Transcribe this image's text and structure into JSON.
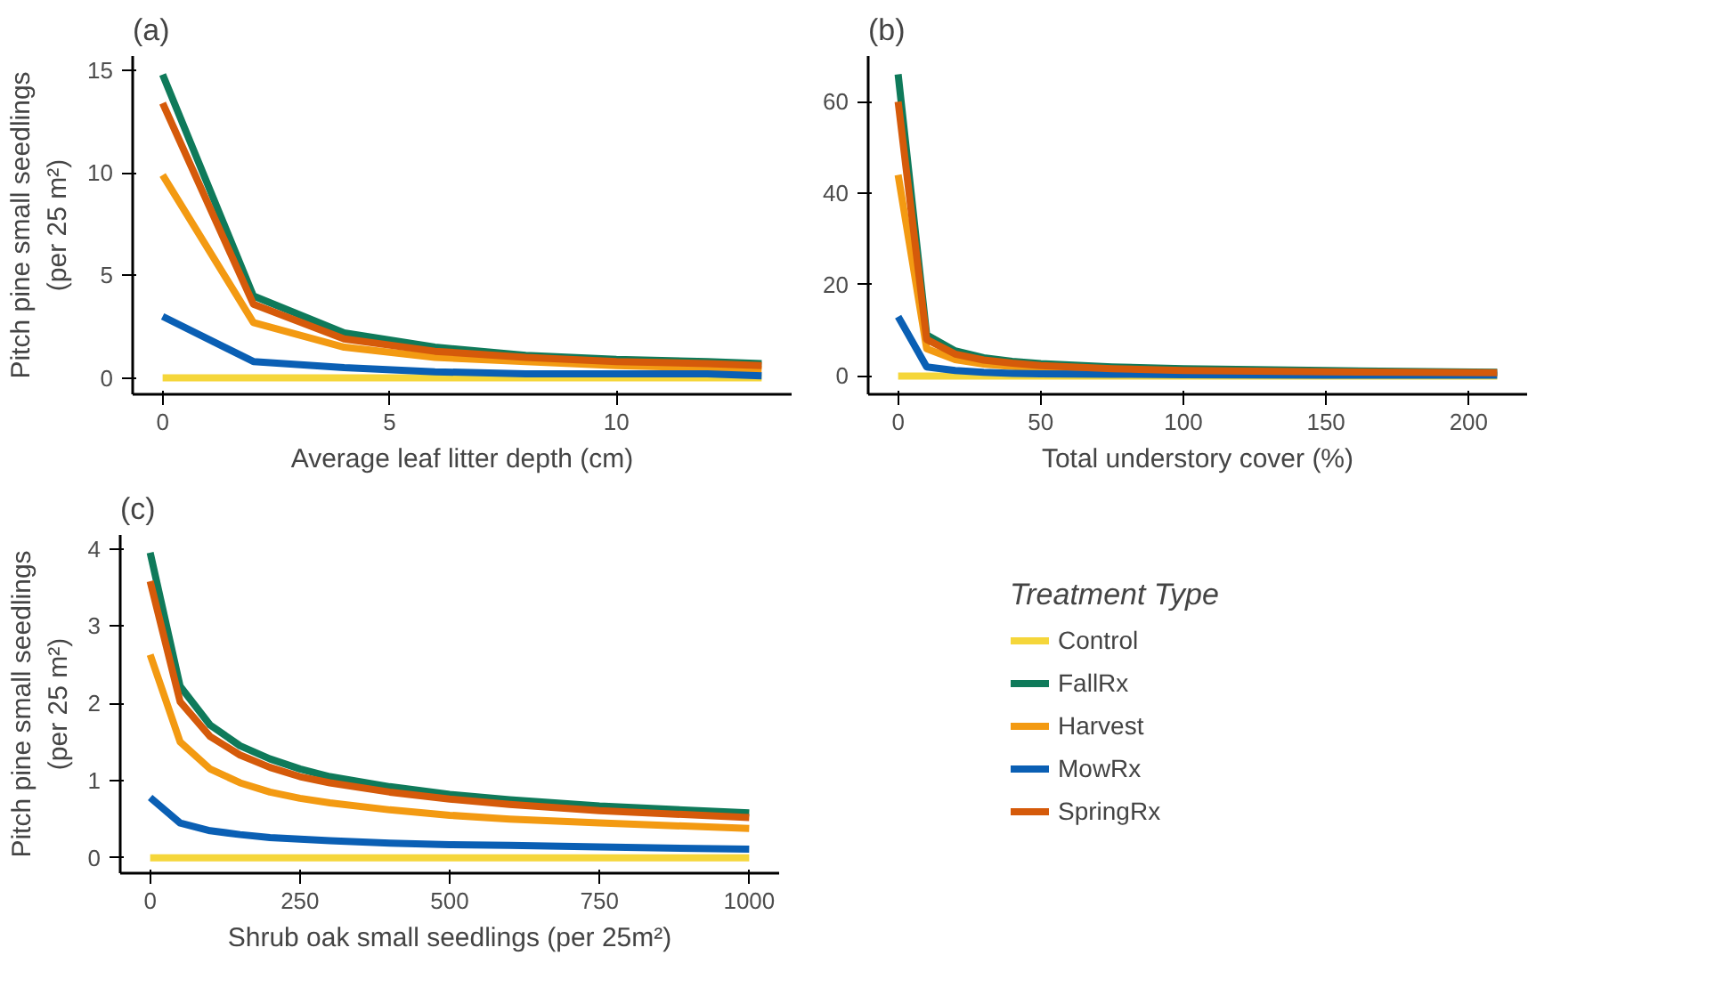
{
  "chart_data": [
    {
      "type": "line",
      "title": "(a)",
      "xlabel": "Average leaf litter depth (cm)",
      "ylabel": "Pitch pine small seedlings\n(per 25 m²)",
      "x": [
        0,
        2,
        4,
        6,
        8,
        10,
        12,
        13.2
      ],
      "xlim": [
        -0.66,
        13.86
      ],
      "ylim": [
        -0.8,
        15.7
      ],
      "xticks": [
        0,
        5,
        10
      ],
      "yticks": [
        0,
        5,
        10,
        15
      ],
      "series": [
        {
          "color": "#f5d63a",
          "values": [
            0,
            0,
            0,
            0,
            0,
            0,
            0,
            0
          ]
        },
        {
          "color": "#0f7a5a",
          "values": [
            14.8,
            4.0,
            2.2,
            1.5,
            1.1,
            0.9,
            0.8,
            0.7
          ]
        },
        {
          "color": "#f39a12",
          "values": [
            9.9,
            2.7,
            1.5,
            1.0,
            0.8,
            0.6,
            0.5,
            0.4
          ]
        },
        {
          "color": "#0a5fb4",
          "values": [
            3.0,
            0.8,
            0.5,
            0.3,
            0.2,
            0.2,
            0.2,
            0.1
          ]
        },
        {
          "color": "#d55a0a",
          "values": [
            13.4,
            3.6,
            1.9,
            1.3,
            1.0,
            0.8,
            0.7,
            0.6
          ]
        }
      ]
    },
    {
      "type": "line",
      "title": "(b)",
      "xlabel": "Total understory cover (%)",
      "x": [
        0,
        10,
        20,
        30,
        40,
        50,
        75,
        100,
        150,
        210
      ],
      "xlim": [
        -10.5,
        220.5
      ],
      "ylim": [
        -4,
        70
      ],
      "xticks": [
        0,
        50,
        100,
        150,
        200
      ],
      "yticks": [
        0,
        20,
        40,
        60
      ],
      "series": [
        {
          "color": "#f5d63a",
          "values": [
            0,
            0,
            0,
            0,
            0,
            0,
            0,
            0,
            0,
            0
          ]
        },
        {
          "color": "#0f7a5a",
          "values": [
            66,
            9,
            5.5,
            4,
            3.2,
            2.7,
            2,
            1.6,
            1.2,
            0.8
          ]
        },
        {
          "color": "#f39a12",
          "values": [
            44,
            6,
            3.6,
            2.6,
            2.1,
            1.7,
            1.2,
            null,
            null,
            null
          ]
        },
        {
          "color": "#0a5fb4",
          "values": [
            13,
            2,
            1.2,
            0.8,
            0.6,
            0.5,
            0.4,
            0.3,
            0.2,
            0.2
          ]
        },
        {
          "color": "#d55a0a",
          "values": [
            60,
            8,
            4.8,
            3.5,
            2.8,
            2.3,
            1.6,
            1.2,
            0.9,
            0.7
          ]
        }
      ]
    },
    {
      "type": "line",
      "title": "(c)",
      "xlabel": "Shrub oak small seedlings (per 25m²)",
      "ylabel": "Pitch pine small seedlings\n(per 25 m²)",
      "x": [
        0,
        50,
        100,
        150,
        200,
        250,
        300,
        400,
        500,
        600,
        750,
        1000
      ],
      "xlim": [
        -50,
        1050
      ],
      "ylim": [
        -0.2,
        4.18
      ],
      "xticks": [
        0,
        250,
        500,
        750,
        1000
      ],
      "yticks": [
        0,
        1,
        2,
        3,
        4
      ],
      "legend": "right",
      "legend_title": "Treatment Type",
      "series": [
        {
          "name": "Control",
          "color": "#f5d63a",
          "values": [
            0,
            0,
            0,
            0,
            0,
            0,
            0,
            0,
            0,
            0,
            0,
            0
          ]
        },
        {
          "name": "FallRx",
          "color": "#0f7a5a",
          "values": [
            3.95,
            2.22,
            1.72,
            1.45,
            1.28,
            1.15,
            1.05,
            0.92,
            0.82,
            0.75,
            0.67,
            0.58
          ]
        },
        {
          "name": "Harvest",
          "color": "#f39a12",
          "values": [
            2.63,
            1.5,
            1.15,
            0.97,
            0.85,
            0.77,
            0.71,
            0.62,
            0.55,
            0.5,
            0.45,
            0.38
          ]
        },
        {
          "name": "MowRx",
          "color": "#0a5fb4",
          "values": [
            0.78,
            0.45,
            0.35,
            0.3,
            0.26,
            0.24,
            0.22,
            0.19,
            0.17,
            0.16,
            0.14,
            0.11
          ]
        },
        {
          "name": "SpringRx",
          "color": "#d55a0a",
          "values": [
            3.58,
            2.02,
            1.57,
            1.33,
            1.17,
            1.05,
            0.97,
            0.85,
            0.76,
            0.69,
            0.61,
            0.52
          ]
        }
      ]
    }
  ]
}
